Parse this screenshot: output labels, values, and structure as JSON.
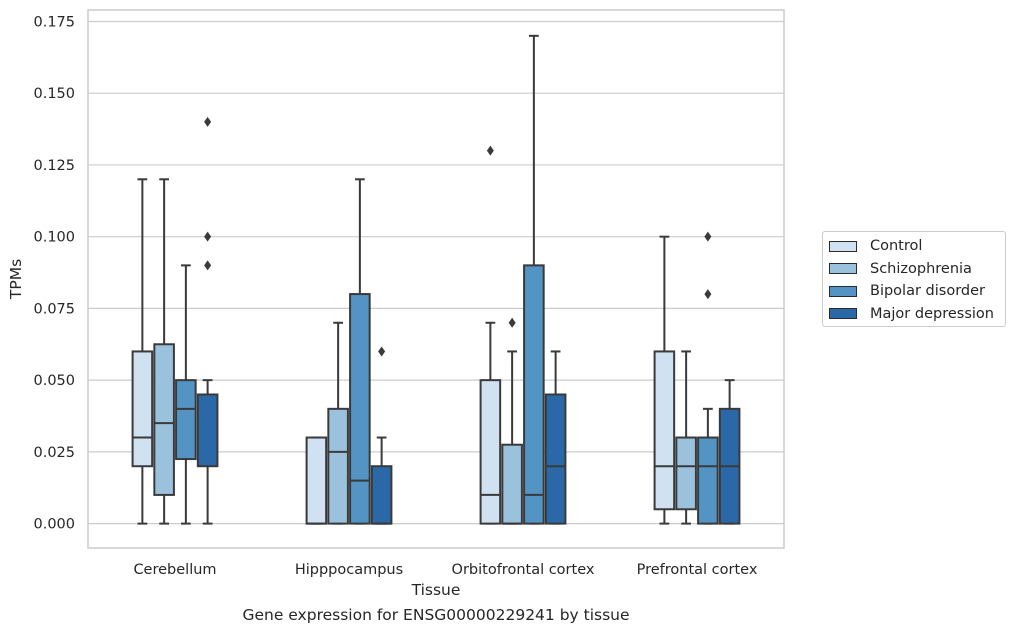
{
  "chart_data": {
    "type": "box",
    "title": "",
    "caption": "Gene expression for ENSG00000229241 by tissue",
    "xlabel": "Tissue",
    "ylabel": "TPMs",
    "ylim": [
      -0.0085,
      0.179
    ],
    "yticks": [
      "0.000",
      "0.025",
      "0.050",
      "0.075",
      "0.100",
      "0.125",
      "0.150",
      "0.175"
    ],
    "categories": [
      "Cerebellum",
      "Hipppocampus",
      "Orbitofrontal cortex",
      "Prefrontal cortex"
    ],
    "legend_position": "right",
    "grid": true,
    "series": [
      {
        "name": "Control",
        "color": "#d0e1f2",
        "boxes": [
          {
            "whisker_low": 0.0,
            "q1": 0.02,
            "median": 0.03,
            "q3": 0.06,
            "whisker_high": 0.12,
            "outliers": []
          },
          {
            "whisker_low": 0.0,
            "q1": 0.0,
            "median": 0.0,
            "q3": 0.03,
            "whisker_high": 0.03,
            "outliers": []
          },
          {
            "whisker_low": 0.0,
            "q1": 0.0,
            "median": 0.01,
            "q3": 0.05,
            "whisker_high": 0.07,
            "outliers": [
              0.13
            ]
          },
          {
            "whisker_low": 0.0,
            "q1": 0.005,
            "median": 0.02,
            "q3": 0.06,
            "whisker_high": 0.1,
            "outliers": []
          }
        ]
      },
      {
        "name": "Schizophrenia",
        "color": "#9ac2dd",
        "boxes": [
          {
            "whisker_low": 0.0,
            "q1": 0.01,
            "median": 0.035,
            "q3": 0.0625,
            "whisker_high": 0.12,
            "outliers": []
          },
          {
            "whisker_low": 0.0,
            "q1": 0.0,
            "median": 0.025,
            "q3": 0.04,
            "whisker_high": 0.07,
            "outliers": []
          },
          {
            "whisker_low": 0.0,
            "q1": 0.0,
            "median": 0.0,
            "q3": 0.0275,
            "whisker_high": 0.06,
            "outliers": [
              0.07
            ]
          },
          {
            "whisker_low": 0.0,
            "q1": 0.005,
            "median": 0.02,
            "q3": 0.03,
            "whisker_high": 0.06,
            "outliers": []
          }
        ]
      },
      {
        "name": "Bipolar disorder",
        "color": "#5394c4",
        "boxes": [
          {
            "whisker_low": 0.0,
            "q1": 0.0225,
            "median": 0.04,
            "q3": 0.05,
            "whisker_high": 0.09,
            "outliers": []
          },
          {
            "whisker_low": 0.0,
            "q1": 0.0,
            "median": 0.015,
            "q3": 0.08,
            "whisker_high": 0.12,
            "outliers": []
          },
          {
            "whisker_low": 0.0,
            "q1": 0.0,
            "median": 0.01,
            "q3": 0.09,
            "whisker_high": 0.17,
            "outliers": []
          },
          {
            "whisker_low": 0.0,
            "q1": 0.0,
            "median": 0.02,
            "q3": 0.03,
            "whisker_high": 0.04,
            "outliers": [
              0.08,
              0.1
            ]
          }
        ]
      },
      {
        "name": "Major depression",
        "color": "#2a68a7",
        "boxes": [
          {
            "whisker_low": 0.0,
            "q1": 0.02,
            "median": 0.045,
            "q3": 0.045,
            "whisker_high": 0.05,
            "outliers": [
              0.09,
              0.1,
              0.14
            ]
          },
          {
            "whisker_low": 0.0,
            "q1": 0.0,
            "median": 0.0,
            "q3": 0.02,
            "whisker_high": 0.03,
            "outliers": [
              0.06
            ]
          },
          {
            "whisker_low": 0.0,
            "q1": 0.0,
            "median": 0.02,
            "q3": 0.045,
            "whisker_high": 0.06,
            "outliers": []
          },
          {
            "whisker_low": 0.0,
            "q1": 0.0,
            "median": 0.02,
            "q3": 0.04,
            "whisker_high": 0.05,
            "outliers": []
          }
        ]
      }
    ]
  },
  "colors": {
    "grid": "#cccccc",
    "line": "#3a3a3a",
    "text": "#262626"
  }
}
